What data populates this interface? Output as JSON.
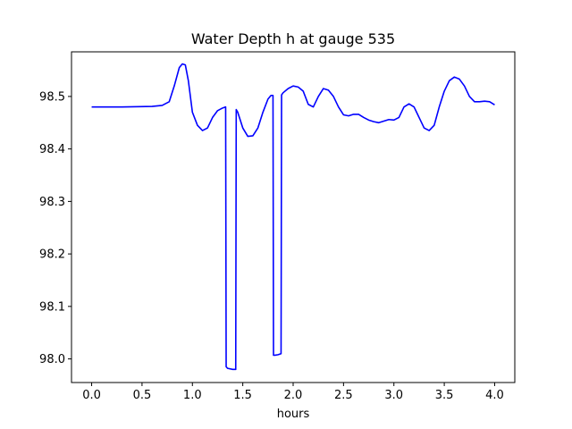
{
  "chart_data": {
    "type": "line",
    "title": "Water Depth h at gauge 535",
    "xlabel": "hours",
    "ylabel": "",
    "xlim": [
      -0.2,
      4.2
    ],
    "ylim": [
      97.955,
      98.585
    ],
    "xticks": [
      0.0,
      0.5,
      1.0,
      1.5,
      2.0,
      2.5,
      3.0,
      3.5,
      4.0
    ],
    "xtick_labels": [
      "0.0",
      "0.5",
      "1.0",
      "1.5",
      "2.0",
      "2.5",
      "3.0",
      "3.5",
      "4.0"
    ],
    "yticks": [
      98.0,
      98.1,
      98.2,
      98.3,
      98.4,
      98.5
    ],
    "ytick_labels": [
      "98.0",
      "98.1",
      "98.2",
      "98.3",
      "98.4",
      "98.5"
    ],
    "grid": false,
    "series": [
      {
        "color": "#0000ff",
        "x": [
          0.0,
          0.3,
          0.6,
          0.7,
          0.77,
          0.82,
          0.87,
          0.9,
          0.93,
          0.96,
          1.0,
          1.05,
          1.1,
          1.15,
          1.2,
          1.25,
          1.3,
          1.33,
          1.335,
          1.35,
          1.4,
          1.43,
          1.435,
          1.45,
          1.5,
          1.55,
          1.6,
          1.65,
          1.7,
          1.75,
          1.78,
          1.8,
          1.805,
          1.82,
          1.85,
          1.88,
          1.885,
          1.9,
          1.95,
          2.0,
          2.05,
          2.1,
          2.15,
          2.2,
          2.25,
          2.3,
          2.35,
          2.4,
          2.45,
          2.5,
          2.55,
          2.6,
          2.65,
          2.7,
          2.75,
          2.8,
          2.85,
          2.9,
          2.95,
          3.0,
          3.05,
          3.1,
          3.15,
          3.2,
          3.25,
          3.3,
          3.35,
          3.4,
          3.45,
          3.5,
          3.55,
          3.6,
          3.65,
          3.7,
          3.75,
          3.8,
          3.85,
          3.9,
          3.95,
          4.0
        ],
        "y": [
          98.48,
          98.48,
          98.481,
          98.483,
          98.49,
          98.52,
          98.555,
          98.562,
          98.56,
          98.53,
          98.47,
          98.445,
          98.435,
          98.44,
          98.46,
          98.473,
          98.478,
          98.48,
          97.985,
          97.982,
          97.98,
          97.98,
          98.475,
          98.47,
          98.44,
          98.424,
          98.425,
          98.44,
          98.47,
          98.495,
          98.502,
          98.502,
          98.007,
          98.007,
          98.008,
          98.01,
          98.503,
          98.507,
          98.515,
          98.52,
          98.518,
          98.51,
          98.485,
          98.48,
          98.5,
          98.515,
          98.512,
          98.5,
          98.48,
          98.465,
          98.463,
          98.466,
          98.466,
          98.46,
          98.455,
          98.452,
          98.45,
          98.453,
          98.456,
          98.455,
          98.46,
          98.48,
          98.486,
          98.48,
          98.46,
          98.44,
          98.435,
          98.445,
          98.48,
          98.51,
          98.53,
          98.537,
          98.533,
          98.52,
          98.5,
          98.49,
          98.49,
          98.491,
          98.49,
          98.484
        ]
      }
    ]
  }
}
